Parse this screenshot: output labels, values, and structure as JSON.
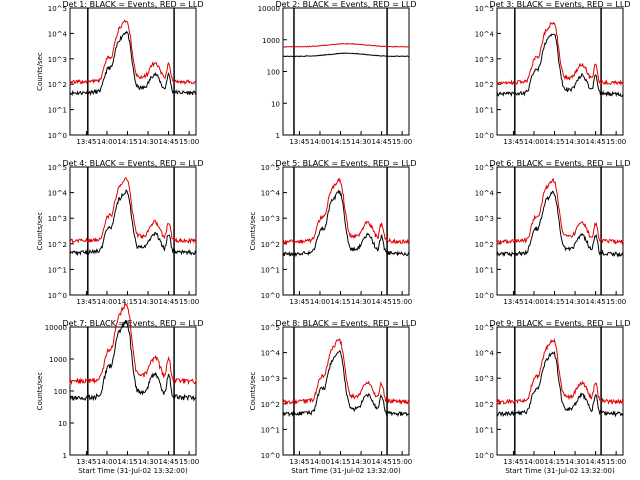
{
  "chart_data": [
    {
      "type": "line",
      "title": "Det 1: BLACK = Events, RED = LLD",
      "ylabel": "Counts/sec",
      "xlabel": "",
      "scale": "log",
      "yticks": [
        "10^0",
        "10^1",
        "10^2",
        "10^3",
        "10^4",
        "10^5"
      ],
      "ylim": [
        1,
        100000
      ],
      "xticks": [
        "13:45",
        "14:00",
        "14:15",
        "14:30",
        "14:45",
        "15:00"
      ],
      "series": [
        {
          "name": "Events",
          "color": "#000000",
          "profile": "big",
          "base": 45
        },
        {
          "name": "LLD",
          "color": "#e00000",
          "profile": "big",
          "base": 120
        }
      ],
      "boundaries": [
        "13:45",
        "14:48"
      ]
    },
    {
      "type": "line",
      "title": "Det 2: BLACK = Events, RED = LLD",
      "ylabel": "",
      "xlabel": "",
      "scale": "linear-labels",
      "yticks": [
        "1",
        "10",
        "100",
        "1000",
        "10000"
      ],
      "ylim": [
        1,
        10000
      ],
      "xticks": [
        "13:45",
        "14:00",
        "14:15",
        "14:30",
        "14:45",
        "15:00"
      ],
      "series": [
        {
          "name": "Events",
          "color": "#000000",
          "profile": "flat",
          "base": 300
        },
        {
          "name": "LLD",
          "color": "#e00000",
          "profile": "flat",
          "base": 600
        }
      ],
      "boundaries": [
        "13:40",
        "14:48"
      ]
    },
    {
      "type": "line",
      "title": "Det 3: BLACK = Events, RED = LLD",
      "ylabel": "",
      "xlabel": "",
      "scale": "log",
      "yticks": [
        "10^0",
        "10^1",
        "10^2",
        "10^3",
        "10^4",
        "10^5"
      ],
      "ylim": [
        1,
        100000
      ],
      "xticks": [
        "13:45",
        "14:00",
        "14:15",
        "14:30",
        "14:45",
        "15:00"
      ],
      "series": [
        {
          "name": "Events",
          "color": "#000000",
          "profile": "big",
          "base": 40
        },
        {
          "name": "LLD",
          "color": "#e00000",
          "profile": "big",
          "base": 110
        }
      ],
      "boundaries": [
        "13:45",
        "14:48"
      ]
    },
    {
      "type": "line",
      "title": "Det 4: BLACK = Events, RED = LLD",
      "ylabel": "Counts/sec",
      "xlabel": "",
      "scale": "log",
      "yticks": [
        "10^0",
        "10^1",
        "10^2",
        "10^3",
        "10^4",
        "10^5"
      ],
      "ylim": [
        1,
        100000
      ],
      "xticks": [
        "13:45",
        "14:00",
        "14:15",
        "14:30",
        "14:45",
        "15:00"
      ],
      "series": [
        {
          "name": "Events",
          "color": "#000000",
          "profile": "big",
          "base": 45
        },
        {
          "name": "LLD",
          "color": "#e00000",
          "profile": "big",
          "base": 130
        }
      ],
      "boundaries": [
        "13:45",
        "14:48"
      ]
    },
    {
      "type": "line",
      "title": "Det 5: BLACK = Events, RED = LLD",
      "ylabel": "Counts/sec",
      "xlabel": "",
      "scale": "log",
      "yticks": [
        "10^0",
        "10^1",
        "10^2",
        "10^3",
        "10^4",
        "10^5"
      ],
      "ylim": [
        1,
        100000
      ],
      "xticks": [
        "13:45",
        "14:00",
        "14:15",
        "14:30",
        "14:45",
        "15:00"
      ],
      "series": [
        {
          "name": "Events",
          "color": "#000000",
          "profile": "big",
          "base": 40
        },
        {
          "name": "LLD",
          "color": "#e00000",
          "profile": "big",
          "base": 120
        }
      ],
      "boundaries": [
        "13:40",
        "14:48"
      ]
    },
    {
      "type": "line",
      "title": "Det 6: BLACK = Events, RED = LLD",
      "ylabel": "",
      "xlabel": "",
      "scale": "log",
      "yticks": [
        "10^0",
        "10^1",
        "10^2",
        "10^3",
        "10^4",
        "10^5"
      ],
      "ylim": [
        1,
        100000
      ],
      "xticks": [
        "13:45",
        "14:00",
        "14:15",
        "14:30",
        "14:45",
        "15:00"
      ],
      "series": [
        {
          "name": "Events",
          "color": "#000000",
          "profile": "big",
          "base": 40
        },
        {
          "name": "LLD",
          "color": "#e00000",
          "profile": "big",
          "base": 120
        }
      ],
      "boundaries": [
        "13:45",
        "14:48"
      ]
    },
    {
      "type": "line",
      "title": "Det 7: BLACK = Events, RED = LLD",
      "ylabel": "Counts/sec",
      "xlabel": "Start Time (31-Jul-02 13:32:00)",
      "scale": "linear-labels",
      "yticks": [
        "1",
        "10",
        "100",
        "1000",
        "10000"
      ],
      "ylim": [
        1,
        10000
      ],
      "xticks": [
        "13:45",
        "14:00",
        "14:15",
        "14:30",
        "14:45",
        "15:00"
      ],
      "series": [
        {
          "name": "Events",
          "color": "#000000",
          "profile": "big",
          "base": 60
        },
        {
          "name": "LLD",
          "color": "#e00000",
          "profile": "big",
          "base": 200
        }
      ],
      "boundaries": [
        "13:45",
        "14:48"
      ]
    },
    {
      "type": "line",
      "title": "Det 8: BLACK = Events, RED = LLD",
      "ylabel": "Counts/sec",
      "xlabel": "Start Time (31-Jul-02 13:32:00)",
      "scale": "log",
      "yticks": [
        "10^0",
        "10^1",
        "10^2",
        "10^3",
        "10^4",
        "10^5"
      ],
      "ylim": [
        1,
        100000
      ],
      "xticks": [
        "13:45",
        "14:00",
        "14:15",
        "14:30",
        "14:45",
        "15:00"
      ],
      "series": [
        {
          "name": "Events",
          "color": "#000000",
          "profile": "big",
          "base": 40
        },
        {
          "name": "LLD",
          "color": "#e00000",
          "profile": "big",
          "base": 120
        }
      ],
      "boundaries": [
        "13:40",
        "14:48"
      ]
    },
    {
      "type": "line",
      "title": "Det 9: BLACK = Events, RED = LLD",
      "ylabel": "",
      "xlabel": "Start Time (31-Jul-02 13:32:00)",
      "scale": "log",
      "yticks": [
        "10^0",
        "10^1",
        "10^2",
        "10^3",
        "10^4",
        "10^5"
      ],
      "ylim": [
        1,
        100000
      ],
      "xticks": [
        "13:45",
        "14:00",
        "14:15",
        "14:30",
        "14:45",
        "15:00"
      ],
      "series": [
        {
          "name": "Events",
          "color": "#000000",
          "profile": "big",
          "base": 40
        },
        {
          "name": "LLD",
          "color": "#e00000",
          "profile": "big",
          "base": 120
        }
      ],
      "boundaries": [
        "13:45",
        "14:48"
      ]
    }
  ],
  "common": {
    "row_xlabel_top": "",
    "row_xlabel_mid": "Start Time (31-Jul-02 13:32:00)",
    "xticks_min": [
      25,
      40,
      55,
      70,
      85,
      100
    ],
    "xrange_min": [
      13,
      105
    ]
  }
}
